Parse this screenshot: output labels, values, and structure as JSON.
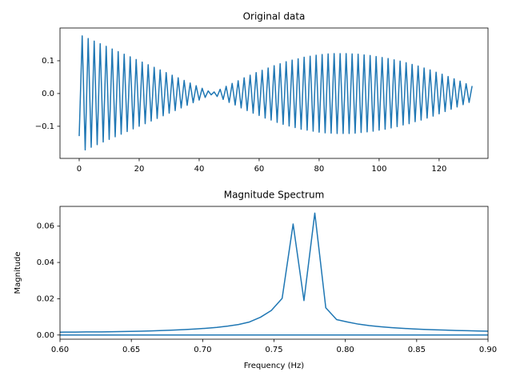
{
  "chart_data": [
    {
      "type": "line",
      "title": "Original data",
      "x": [
        0,
        1,
        2,
        3,
        4,
        5,
        6,
        7,
        8,
        9,
        10,
        11,
        12,
        13,
        14,
        15,
        16,
        17,
        18,
        19,
        20,
        21,
        22,
        23,
        24,
        25,
        26,
        27,
        28,
        29,
        30,
        31,
        32,
        33,
        34,
        35,
        36,
        37,
        38,
        39,
        40,
        41,
        42,
        43,
        44,
        45,
        46,
        47,
        48,
        49,
        50,
        51,
        52,
        53,
        54,
        55,
        56,
        57,
        58,
        59,
        60,
        61,
        62,
        63,
        64,
        65,
        66,
        67,
        68,
        69,
        70,
        71,
        72,
        73,
        74,
        75,
        76,
        77,
        78,
        79,
        80,
        81,
        82,
        83,
        84,
        85,
        86,
        87,
        88,
        89,
        90,
        91,
        92,
        93,
        94,
        95,
        96,
        97,
        98,
        99,
        100,
        101,
        102,
        103,
        104,
        105,
        106,
        107,
        108,
        109,
        110,
        111,
        112,
        113,
        114,
        115,
        116,
        117,
        118,
        119,
        120,
        121,
        122,
        123,
        124,
        125,
        126,
        127,
        128,
        129,
        130,
        131
      ],
      "series": [
        {
          "color": "#1f77b4",
          "values": [
            -0.13,
            0.176,
            -0.172,
            0.168,
            -0.164,
            0.16,
            -0.156,
            0.152,
            -0.148,
            0.144,
            -0.14,
            0.136,
            -0.132,
            0.128,
            -0.124,
            0.12,
            -0.116,
            0.112,
            -0.108,
            0.104,
            -0.1,
            0.096,
            -0.092,
            0.088,
            -0.084,
            0.08,
            -0.076,
            0.072,
            -0.068,
            0.064,
            -0.06,
            0.056,
            -0.052,
            0.048,
            -0.044,
            0.04,
            -0.036,
            0.032,
            -0.028,
            0.024,
            -0.02,
            0.016,
            -0.012,
            0.008,
            -0.004,
            0.005,
            -0.009,
            0.013,
            -0.018,
            0.022,
            -0.027,
            0.031,
            -0.035,
            0.039,
            -0.044,
            0.048,
            -0.052,
            0.056,
            -0.06,
            0.064,
            -0.067,
            0.071,
            -0.075,
            0.078,
            -0.081,
            0.085,
            -0.088,
            0.091,
            -0.094,
            0.097,
            -0.099,
            0.102,
            -0.104,
            0.106,
            -0.109,
            0.111,
            -0.112,
            0.114,
            -0.115,
            0.117,
            -0.118,
            0.119,
            -0.12,
            0.121,
            -0.121,
            0.122,
            -0.122,
            0.122,
            -0.122,
            0.122,
            -0.122,
            0.121,
            -0.121,
            0.12,
            -0.119,
            0.118,
            -0.117,
            0.116,
            -0.115,
            0.113,
            -0.112,
            0.11,
            -0.109,
            0.107,
            -0.105,
            0.103,
            -0.101,
            0.099,
            -0.096,
            0.094,
            -0.092,
            0.089,
            -0.086,
            0.084,
            -0.081,
            0.078,
            -0.075,
            0.072,
            -0.069,
            0.065,
            -0.062,
            0.059,
            -0.055,
            0.052,
            -0.048,
            0.045,
            -0.041,
            0.038,
            -0.034,
            0.03,
            -0.027,
            0.023
          ]
        }
      ],
      "xlim": [
        -6.4,
        136.3
      ],
      "ylim": [
        -0.198,
        0.2
      ],
      "xticks": [
        0,
        20,
        40,
        60,
        80,
        100,
        120
      ],
      "yticks": [
        {
          "value": -0.1,
          "label": "−0.1"
        },
        {
          "value": 0,
          "label": "0.0"
        },
        0.1
      ]
    },
    {
      "type": "line",
      "title": "Magnitude Spectrum",
      "xlabel": "Frequency (Hz)",
      "ylabel": "Magnitude",
      "series": [
        {
          "color": "#1f77b4",
          "x": [
            0.5878,
            0.5954,
            0.6031,
            0.6107,
            0.6183,
            0.626,
            0.6336,
            0.6412,
            0.6489,
            0.6565,
            0.6641,
            0.6718,
            0.6794,
            0.687,
            0.6947,
            0.7023,
            0.7099,
            0.7176,
            0.7252,
            0.7328,
            0.7405,
            0.7481,
            0.7557,
            0.7634,
            0.771,
            0.7786,
            0.7863,
            0.7939,
            0.8015,
            0.8092,
            0.8168,
            0.8244,
            0.8321,
            0.8397,
            0.8473,
            0.855,
            0.8626,
            0.8702,
            0.8779,
            0.8855,
            0.8931,
            0.9008,
            0.9084
          ],
          "values": [
            0.0015,
            0.0015,
            0.0016,
            0.0016,
            0.0017,
            0.0017,
            0.0018,
            0.0019,
            0.002,
            0.0021,
            0.0023,
            0.0025,
            0.0027,
            0.003,
            0.0033,
            0.0037,
            0.0042,
            0.0049,
            0.0058,
            0.0072,
            0.0098,
            0.0135,
            0.0202,
            0.0612,
            0.019,
            0.0672,
            0.015,
            0.0085,
            0.0072,
            0.006,
            0.0052,
            0.0046,
            0.0041,
            0.0037,
            0.0034,
            0.0031,
            0.0029,
            0.0027,
            0.0025,
            0.0024,
            0.0022,
            0.0021,
            0.002
          ]
        },
        {
          "color": "#1f77b4",
          "x": [
            0.5878,
            0.9084
          ],
          "values": [
            0,
            0
          ]
        }
      ],
      "xlim": [
        0.6,
        0.9
      ],
      "ylim": [
        -0.0023,
        0.0709
      ],
      "xticks": [
        {
          "value": 0.6,
          "label": "0.60"
        },
        {
          "value": 0.65,
          "label": "0.65"
        },
        {
          "value": 0.7,
          "label": "0.70"
        },
        {
          "value": 0.75,
          "label": "0.75"
        },
        {
          "value": 0.8,
          "label": "0.80"
        },
        {
          "value": 0.85,
          "label": "0.85"
        },
        {
          "value": 0.9,
          "label": "0.90"
        }
      ],
      "yticks": [
        {
          "value": 0,
          "label": "0.00"
        },
        {
          "value": 0.02,
          "label": "0.02"
        },
        {
          "value": 0.04,
          "label": "0.04"
        },
        {
          "value": 0.06,
          "label": "0.06"
        }
      ]
    }
  ]
}
